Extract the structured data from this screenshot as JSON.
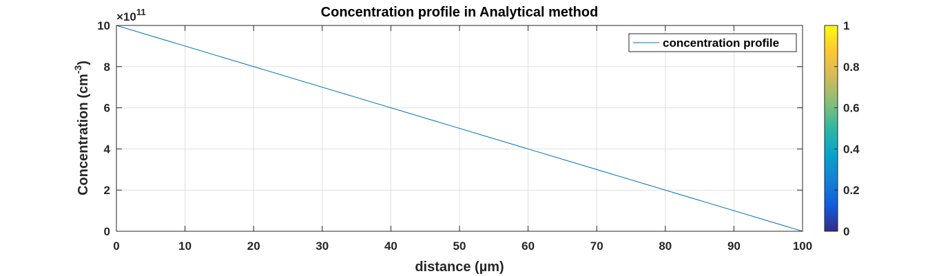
{
  "chart_data": {
    "type": "line",
    "title": "Concentration profile in Analytical method",
    "xlabel": "distance (µm)",
    "ylabel": {
      "main": "Concentration (cm",
      "sup": "-3",
      "close": ")"
    },
    "y_exponent": {
      "base": "×10",
      "power": "11"
    },
    "xlim": [
      0,
      100
    ],
    "ylim": [
      0,
      10
    ],
    "xticks": [
      "0",
      "10",
      "20",
      "30",
      "40",
      "50",
      "60",
      "70",
      "80",
      "90",
      "100"
    ],
    "yticks": [
      "0",
      "2",
      "4",
      "6",
      "8",
      "10"
    ],
    "grid": true,
    "legend_position": "top-right",
    "series": [
      {
        "name": "concentration profile",
        "color": "#0072bd",
        "x": [
          0,
          100
        ],
        "y": [
          10,
          0
        ]
      }
    ],
    "colorbar": {
      "ticks": [
        "0",
        "0.2",
        "0.4",
        "0.6",
        "0.8",
        "1"
      ],
      "range": [
        0,
        1
      ],
      "colormap": "parula",
      "colors": [
        "#352a87",
        "#0f5cdd",
        "#1481d6",
        "#06a4ca",
        "#2eb7a4",
        "#87bf77",
        "#d1bb59",
        "#fec832",
        "#f9fb0e"
      ]
    }
  }
}
